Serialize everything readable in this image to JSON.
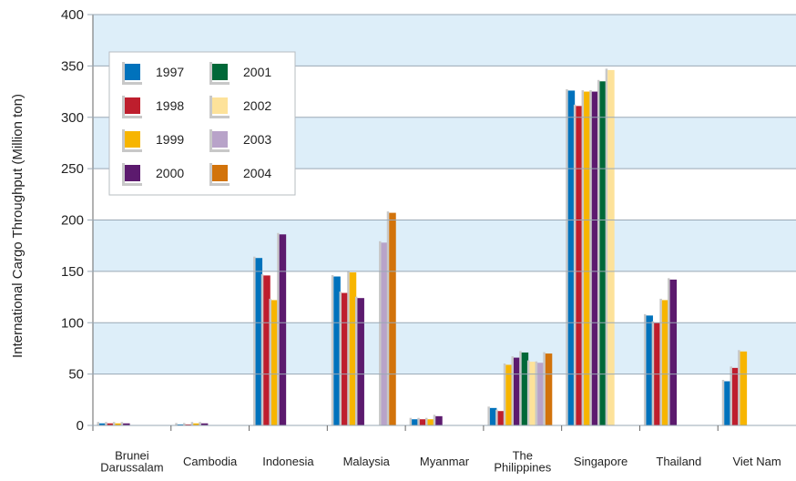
{
  "chart_data": {
    "type": "bar",
    "ylabel": "International Cargo Throughput (Million ton)",
    "ylim": [
      0,
      400
    ],
    "yticks": [
      0,
      50,
      100,
      150,
      200,
      250,
      300,
      350,
      400
    ],
    "grid": "alternating horizontal bands",
    "legend_position": "top-left",
    "categories": [
      [
        "Brunei",
        "Darussalam"
      ],
      [
        "Cambodia"
      ],
      [
        "Indonesia"
      ],
      [
        "Malaysia"
      ],
      [
        "Myanmar"
      ],
      [
        "The",
        "Philippines"
      ],
      [
        "Singapore"
      ],
      [
        "Thailand"
      ],
      [
        "Viet Nam"
      ]
    ],
    "series": [
      {
        "name": "1997",
        "color": "#0072bc",
        "values": [
          2,
          1,
          163,
          145,
          6,
          17,
          326,
          107,
          43
        ]
      },
      {
        "name": "1998",
        "color": "#be1e2d",
        "values": [
          2,
          1,
          146,
          129,
          6,
          14,
          311,
          100,
          56
        ]
      },
      {
        "name": "1999",
        "color": "#f7b500",
        "values": [
          2,
          2,
          122,
          149,
          6,
          59,
          325,
          122,
          72
        ]
      },
      {
        "name": "2000",
        "color": "#5c1a6e",
        "values": [
          2,
          2,
          186,
          124,
          9,
          66,
          325,
          142,
          null
        ]
      },
      {
        "name": "2001",
        "color": "#006838",
        "values": [
          null,
          null,
          null,
          null,
          null,
          71,
          335,
          null,
          null
        ]
      },
      {
        "name": "2002",
        "color": "#fde29a",
        "values": [
          null,
          null,
          null,
          null,
          null,
          62,
          346,
          null,
          null
        ]
      },
      {
        "name": "2003",
        "color": "#b8a3c9",
        "values": [
          null,
          null,
          null,
          178,
          null,
          61,
          null,
          null,
          null
        ]
      },
      {
        "name": "2004",
        "color": "#d2730b",
        "values": [
          null,
          null,
          null,
          207,
          null,
          70,
          null,
          null,
          null
        ]
      }
    ]
  }
}
